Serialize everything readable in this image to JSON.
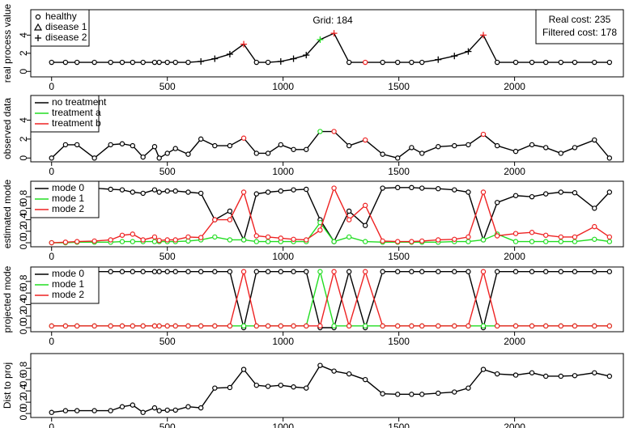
{
  "chart_data": [
    {
      "type": "line",
      "title": "Grid: 184",
      "ylabel": "real process value",
      "annotations": [
        "Real cost: 235",
        "Filtered cost: 178"
      ],
      "marker_legend": [
        "healthy",
        "disease 1",
        "disease 2"
      ],
      "treatment_colors": [
        "#000000",
        "#22dd22",
        "#ee2222"
      ],
      "x": [
        0,
        60,
        110,
        185,
        255,
        305,
        350,
        395,
        445,
        465,
        500,
        535,
        590,
        645,
        705,
        770,
        830,
        885,
        935,
        990,
        1045,
        1100,
        1160,
        1220,
        1285,
        1355,
        1430,
        1495,
        1555,
        1600,
        1670,
        1740,
        1800,
        1865,
        1925,
        2005,
        2075,
        2135,
        2200,
        2260,
        2345,
        2410
      ],
      "series": [
        {
          "color": "#000000",
          "values": [
            1,
            1,
            1,
            1,
            1,
            1,
            1,
            1,
            1,
            1,
            1,
            1,
            1,
            1.1,
            1.4,
            1.9,
            3,
            1,
            1,
            1.1,
            1.4,
            1.8,
            3.5,
            4.2,
            1,
            1,
            1,
            1,
            1,
            1,
            1.3,
            1.7,
            2.2,
            4,
            1,
            1,
            1,
            1,
            1,
            1,
            1,
            1
          ]
        }
      ],
      "markers": [
        0,
        0,
        0,
        0,
        0,
        0,
        0,
        0,
        0,
        0,
        0,
        0,
        0,
        2,
        2,
        2,
        2,
        0,
        0,
        2,
        2,
        2,
        2,
        2,
        0,
        0,
        0,
        0,
        0,
        0,
        2,
        2,
        2,
        2,
        0,
        0,
        0,
        0,
        0,
        0,
        0,
        0
      ],
      "treatment": [
        0,
        0,
        0,
        0,
        0,
        0,
        0,
        0,
        0,
        0,
        0,
        0,
        0,
        0,
        0,
        0,
        2,
        0,
        0,
        0,
        0,
        0,
        1,
        2,
        0,
        2,
        0,
        0,
        0,
        0,
        0,
        0,
        0,
        2,
        0,
        0,
        0,
        0,
        0,
        0,
        0,
        0
      ],
      "xlim": [
        -90,
        2470
      ],
      "ylim": [
        -0.6,
        6.8
      ],
      "xticks": [
        0,
        500,
        1000,
        1500,
        2000
      ],
      "yticks": [
        0,
        2,
        4
      ]
    },
    {
      "type": "line",
      "ylabel": "observed data",
      "treatment_legend": [
        {
          "name": "no treatment",
          "color": "#000000"
        },
        {
          "name": "treatment a",
          "color": "#22dd22"
        },
        {
          "name": "treatment b",
          "color": "#ee2222"
        }
      ],
      "x": [
        0,
        60,
        110,
        185,
        255,
        305,
        350,
        395,
        445,
        465,
        500,
        535,
        590,
        645,
        705,
        770,
        830,
        885,
        935,
        990,
        1045,
        1100,
        1160,
        1220,
        1285,
        1355,
        1430,
        1495,
        1555,
        1600,
        1670,
        1740,
        1800,
        1865,
        1925,
        2005,
        2075,
        2135,
        2200,
        2260,
        2345,
        2410
      ],
      "series": [
        {
          "color": "#000000",
          "values": [
            0,
            1.4,
            1.4,
            0,
            1.4,
            1.5,
            1.3,
            0.1,
            1.2,
            0,
            0.5,
            1,
            0.4,
            2,
            1.3,
            1.3,
            2.1,
            0.5,
            0.5,
            1.4,
            0.9,
            0.9,
            2.8,
            2.8,
            1.3,
            1.9,
            0.4,
            0,
            1.1,
            0.5,
            1.2,
            1.3,
            1.4,
            2.5,
            1.3,
            0.7,
            1.4,
            1.1,
            0.5,
            1.1,
            1.9,
            0
          ]
        }
      ],
      "treatment": [
        0,
        0,
        0,
        0,
        0,
        0,
        0,
        0,
        0,
        0,
        0,
        0,
        0,
        0,
        0,
        0,
        2,
        0,
        0,
        0,
        0,
        0,
        1,
        2,
        0,
        2,
        0,
        0,
        0,
        0,
        0,
        0,
        0,
        2,
        0,
        0,
        0,
        0,
        0,
        0,
        0,
        0
      ],
      "xlim": [
        -90,
        2470
      ],
      "ylim": [
        -0.4,
        6.6
      ],
      "xticks": [
        0,
        500,
        1000,
        1500,
        2000
      ],
      "yticks": [
        0,
        2,
        4
      ]
    },
    {
      "type": "line",
      "ylabel": "estimated mode",
      "x": [
        0,
        60,
        110,
        185,
        255,
        305,
        350,
        395,
        445,
        465,
        500,
        535,
        590,
        645,
        705,
        770,
        830,
        885,
        935,
        990,
        1045,
        1100,
        1160,
        1220,
        1285,
        1355,
        1430,
        1495,
        1555,
        1600,
        1670,
        1740,
        1800,
        1865,
        1925,
        2005,
        2075,
        2135,
        2200,
        2260,
        2345,
        2410
      ],
      "series": [
        {
          "name": "mode 0",
          "color": "#000000",
          "values": [
            0.97,
            0.96,
            0.95,
            0.95,
            0.93,
            0.92,
            0.88,
            0.86,
            0.92,
            0.88,
            0.9,
            0.9,
            0.88,
            0.86,
            0.4,
            0.55,
            0.05,
            0.85,
            0.88,
            0.9,
            0.92,
            0.93,
            0.4,
            0.02,
            0.55,
            0.3,
            0.95,
            0.96,
            0.96,
            0.95,
            0.94,
            0.92,
            0.88,
            0.05,
            0.7,
            0.82,
            0.8,
            0.85,
            0.88,
            0.87,
            0.6,
            0.88
          ]
        },
        {
          "name": "mode 1",
          "color": "#22dd22",
          "values": [
            0,
            0,
            0.01,
            0.01,
            0.01,
            0.02,
            0.02,
            0.02,
            0.02,
            0.02,
            0.02,
            0.02,
            0.03,
            0.05,
            0.1,
            0.05,
            0.05,
            0.02,
            0.02,
            0.02,
            0.02,
            0.02,
            0.35,
            0.02,
            0.1,
            0.02,
            0.01,
            0.01,
            0.01,
            0.01,
            0.01,
            0.02,
            0.02,
            0.05,
            0.15,
            0.02,
            0.02,
            0.02,
            0.02,
            0.02,
            0.06,
            0.02
          ]
        },
        {
          "name": "mode 2",
          "color": "#ee2222",
          "values": [
            0,
            0.01,
            0.02,
            0.03,
            0.05,
            0.13,
            0.15,
            0.05,
            0.1,
            0.04,
            0.05,
            0.05,
            0.1,
            0.09,
            0.4,
            0.4,
            0.88,
            0.12,
            0.1,
            0.08,
            0.06,
            0.05,
            0.22,
            0.95,
            0.4,
            0.65,
            0.03,
            0.02,
            0.02,
            0.03,
            0.05,
            0.06,
            0.1,
            0.88,
            0.12,
            0.16,
            0.18,
            0.13,
            0.1,
            0.1,
            0.28,
            0.1
          ]
        }
      ],
      "xlim": [
        -90,
        2470
      ],
      "ylim": [
        -0.07,
        1.07
      ],
      "xticks": [
        0,
        500,
        1000,
        1500,
        2000
      ],
      "yticks": [
        {
          "value": 0,
          "label": "0.0"
        },
        {
          "value": 0.2,
          "label": "0.2"
        },
        {
          "value": 0.4,
          "label": "0.4"
        },
        {
          "value": 0.6,
          "label": "0.6"
        },
        {
          "value": 0.8,
          "label": "0.8"
        }
      ]
    },
    {
      "type": "line",
      "ylabel": "projected mode",
      "x": [
        0,
        60,
        110,
        185,
        255,
        305,
        350,
        395,
        445,
        465,
        500,
        535,
        590,
        645,
        705,
        770,
        830,
        885,
        935,
        990,
        1045,
        1100,
        1160,
        1220,
        1285,
        1355,
        1430,
        1495,
        1555,
        1600,
        1670,
        1740,
        1800,
        1865,
        1925,
        2005,
        2075,
        2135,
        2200,
        2260,
        2345,
        2410
      ],
      "series": [
        {
          "name": "mode 0",
          "color": "#000000",
          "values": [
            0.97,
            0.97,
            0.97,
            0.97,
            0.97,
            0.97,
            0.97,
            0.97,
            0.97,
            0.97,
            0.97,
            0.97,
            0.97,
            0.97,
            0.97,
            0.97,
            0,
            0.97,
            0.97,
            0.97,
            0.97,
            0.97,
            0,
            0,
            0.97,
            0,
            0.97,
            0.97,
            0.97,
            0.97,
            0.97,
            0.97,
            0.97,
            0,
            0.97,
            0.97,
            0.97,
            0.97,
            0.97,
            0.97,
            0.97,
            0.97
          ]
        },
        {
          "name": "mode 1",
          "color": "#22dd22",
          "values": [
            0.03,
            0.03,
            0.03,
            0.03,
            0.03,
            0.03,
            0.03,
            0.03,
            0.03,
            0.03,
            0.03,
            0.03,
            0.03,
            0.03,
            0.03,
            0.03,
            0.03,
            0.03,
            0.03,
            0.03,
            0.03,
            0.03,
            0.97,
            0.03,
            0.03,
            0.03,
            0.03,
            0.03,
            0.03,
            0.03,
            0.03,
            0.03,
            0.03,
            0.03,
            0.03,
            0.03,
            0.03,
            0.03,
            0.03,
            0.03,
            0.03,
            0.03
          ]
        },
        {
          "name": "mode 2",
          "color": "#ee2222",
          "values": [
            0.03,
            0.03,
            0.03,
            0.03,
            0.03,
            0.03,
            0.03,
            0.03,
            0.03,
            0.03,
            0.03,
            0.03,
            0.03,
            0.03,
            0.03,
            0.03,
            0.97,
            0.03,
            0.03,
            0.03,
            0.03,
            0.03,
            0.03,
            0.97,
            0.03,
            0.97,
            0.03,
            0.03,
            0.03,
            0.03,
            0.03,
            0.03,
            0.03,
            0.97,
            0.03,
            0.03,
            0.03,
            0.03,
            0.03,
            0.03,
            0.03,
            0.03
          ]
        }
      ],
      "xlim": [
        -90,
        2470
      ],
      "ylim": [
        -0.07,
        1.05
      ],
      "xticks": [
        0,
        500,
        1000,
        1500,
        2000
      ],
      "yticks": [
        {
          "value": 0,
          "label": "0.0"
        },
        {
          "value": 0.2,
          "label": "0.2"
        },
        {
          "value": 0.4,
          "label": "0.4"
        },
        {
          "value": 0.6,
          "label": "0.6"
        },
        {
          "value": 0.8,
          "label": "0.8"
        }
      ]
    },
    {
      "type": "line",
      "ylabel": "Dist to proj",
      "x": [
        0,
        60,
        110,
        185,
        255,
        305,
        350,
        395,
        445,
        465,
        500,
        535,
        590,
        645,
        705,
        770,
        830,
        885,
        935,
        990,
        1045,
        1100,
        1160,
        1220,
        1285,
        1355,
        1430,
        1495,
        1555,
        1600,
        1670,
        1740,
        1800,
        1865,
        1925,
        2005,
        2075,
        2135,
        2200,
        2260,
        2345,
        2410
      ],
      "series": [
        {
          "color": "#000000",
          "values": [
            0.02,
            0.05,
            0.05,
            0.05,
            0.05,
            0.12,
            0.15,
            0.02,
            0.1,
            0.05,
            0.06,
            0.06,
            0.12,
            0.1,
            0.45,
            0.46,
            0.78,
            0.5,
            0.48,
            0.5,
            0.47,
            0.45,
            0.85,
            0.75,
            0.7,
            0.6,
            0.35,
            0.34,
            0.34,
            0.34,
            0.36,
            0.38,
            0.45,
            0.78,
            0.7,
            0.68,
            0.72,
            0.66,
            0.66,
            0.67,
            0.72,
            0.66
          ]
        }
      ],
      "xlim": [
        -90,
        2470
      ],
      "ylim": [
        -0.07,
        1.06
      ],
      "xticks": [
        0,
        500,
        1000,
        1500,
        2000
      ],
      "yticks": [
        {
          "value": 0,
          "label": "0.0"
        },
        {
          "value": 0.2,
          "label": "0.2"
        },
        {
          "value": 0.4,
          "label": "0.4"
        },
        {
          "value": 0.6,
          "label": "0.6"
        },
        {
          "value": 0.8,
          "label": "0.8"
        }
      ]
    }
  ]
}
